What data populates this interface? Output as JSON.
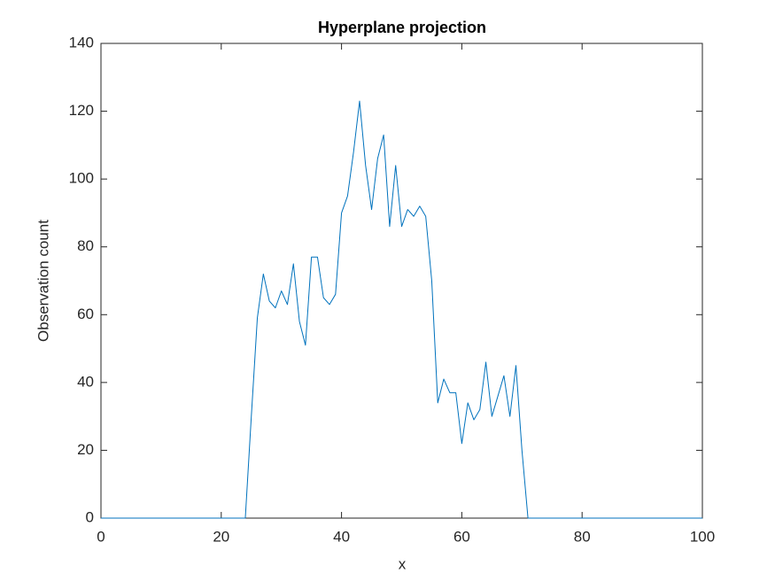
{
  "chart_data": {
    "type": "line",
    "title": "Hyperplane projection",
    "x_label": "x",
    "y_label": "Observation count",
    "x": [
      0,
      1,
      2,
      3,
      4,
      5,
      6,
      7,
      8,
      9,
      10,
      11,
      12,
      13,
      14,
      15,
      16,
      17,
      18,
      19,
      20,
      21,
      22,
      23,
      24,
      25,
      26,
      27,
      28,
      29,
      30,
      31,
      32,
      33,
      34,
      35,
      36,
      37,
      38,
      39,
      40,
      41,
      42,
      43,
      44,
      45,
      46,
      47,
      48,
      49,
      50,
      51,
      52,
      53,
      54,
      55,
      56,
      57,
      58,
      59,
      60,
      61,
      62,
      63,
      64,
      65,
      66,
      67,
      68,
      69,
      70,
      71,
      72,
      73,
      74,
      75,
      76,
      77,
      78,
      79,
      80,
      81,
      82,
      83,
      84,
      85,
      86,
      87,
      88,
      89,
      90,
      91,
      92,
      93,
      94,
      95,
      96,
      97,
      98,
      99,
      100
    ],
    "series": [
      {
        "color": "#0072bd",
        "values": [
          0,
          0,
          0,
          0,
          0,
          0,
          0,
          0,
          0,
          0,
          0,
          0,
          0,
          0,
          0,
          0,
          0,
          0,
          0,
          0,
          0,
          0,
          0,
          0,
          0,
          30,
          59,
          72,
          64,
          62,
          67,
          63,
          75,
          58,
          51,
          77,
          77,
          65,
          63,
          66,
          90,
          95,
          108,
          123,
          104,
          91,
          106,
          113,
          86,
          104,
          86,
          91,
          89,
          92,
          89,
          70,
          34,
          41,
          37,
          37,
          22,
          34,
          29,
          32,
          46,
          30,
          36,
          42,
          30,
          45,
          20,
          0,
          0,
          0,
          0,
          0,
          0,
          0,
          0,
          0,
          0,
          0,
          0,
          0,
          0,
          0,
          0,
          0,
          0,
          0,
          0,
          0,
          0,
          0,
          0,
          0,
          0,
          0,
          0,
          0,
          0
        ]
      }
    ],
    "xlim": [
      0,
      100
    ],
    "xticks": [
      0,
      20,
      40,
      60,
      80,
      100
    ],
    "ylim": [
      0,
      140
    ],
    "yticks": [
      0,
      20,
      40,
      60,
      80,
      100,
      120,
      140
    ]
  }
}
